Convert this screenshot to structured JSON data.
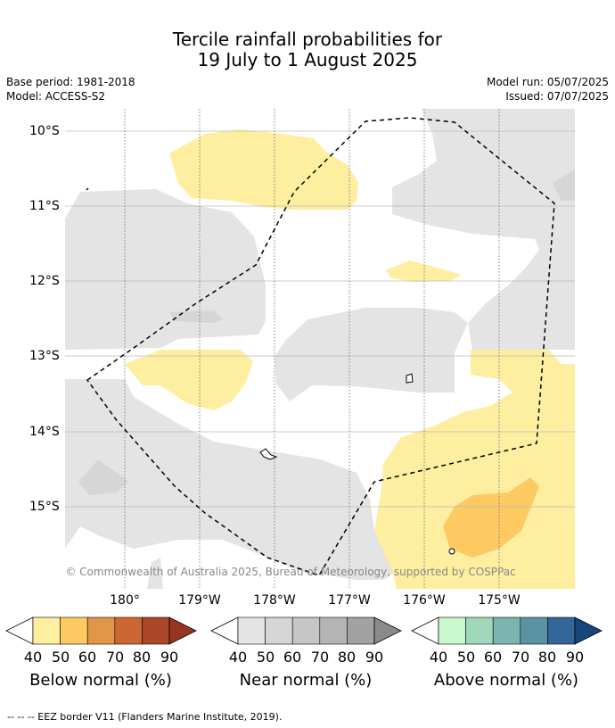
{
  "title": {
    "line1": "Tercile rainfall probabilities for",
    "line2": "19 July to 1 August 2025"
  },
  "meta": {
    "base_period": "Base period: 1981-2018",
    "model": "Model: ACCESS-S2",
    "model_run": "Model run: 05/07/2025",
    "issued": "Issued: 07/07/2025"
  },
  "lat_labels": [
    "10°S",
    "11°S",
    "12°S",
    "13°S",
    "14°S",
    "15°S"
  ],
  "lon_labels": [
    "180°",
    "179°W",
    "178°W",
    "177°W",
    "176°W",
    "175°W"
  ],
  "copyright": "© Commonwealth of Australia 2025, Bureau of Meteorology, supported by COSPPac",
  "colorbars": [
    {
      "name": "below",
      "label": "Below normal (%)",
      "ticks": [
        "40",
        "50",
        "60",
        "70",
        "80",
        "90"
      ],
      "colors": [
        "#fdeea0",
        "#fdc963",
        "#e29648",
        "#cc6633",
        "#ac4628",
        "#963520"
      ]
    },
    {
      "name": "near",
      "label": "Near normal (%)",
      "ticks": [
        "40",
        "50",
        "60",
        "70",
        "80",
        "90"
      ],
      "colors": [
        "#e4e4e4",
        "#d6d6d6",
        "#c6c6c6",
        "#b4b4b4",
        "#a2a2a2",
        "#8a8a8a"
      ]
    },
    {
      "name": "above",
      "label": "Above normal (%)",
      "ticks": [
        "40",
        "50",
        "60",
        "70",
        "80",
        "90"
      ],
      "colors": [
        "#c8f8cc",
        "#a0d8bc",
        "#7cb4b0",
        "#5a93a1",
        "#336699",
        "#16467a"
      ]
    }
  ],
  "footnote": "--  --  -- EEZ border V11 (Flanders Marine Institute, 2019)."
}
